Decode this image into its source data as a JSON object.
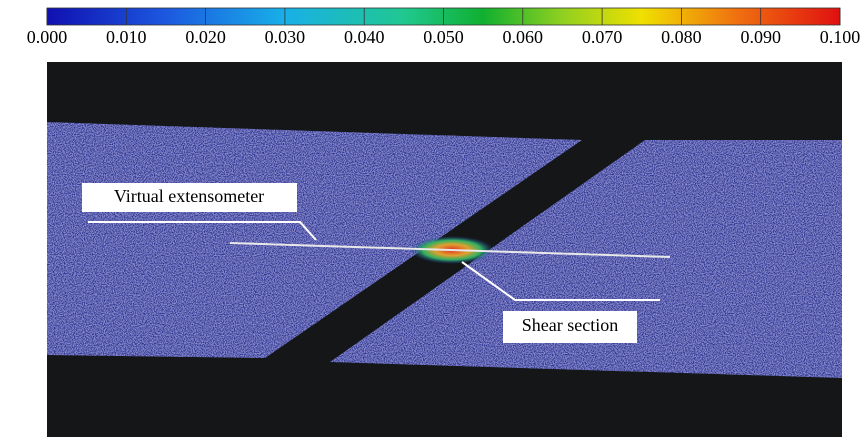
{
  "colorbar": {
    "lim": [
      0,
      0.1
    ],
    "ticks": [
      {
        "value": 0,
        "label": "0.000"
      },
      {
        "value": 0.01,
        "label": "0.010"
      },
      {
        "value": 0.02,
        "label": "0.020"
      },
      {
        "value": 0.03,
        "label": "0.030"
      },
      {
        "value": 0.04,
        "label": "0.040"
      },
      {
        "value": 0.05,
        "label": "0.050"
      },
      {
        "value": 0.06,
        "label": "0.060"
      },
      {
        "value": 0.07,
        "label": "0.070"
      },
      {
        "value": 0.08,
        "label": "0.080"
      },
      {
        "value": 0.09,
        "label": "0.090"
      },
      {
        "value": 0.1,
        "label": "0.100"
      }
    ]
  },
  "annotations": [
    "Virtual extensometer",
    "Shear section"
  ]
}
